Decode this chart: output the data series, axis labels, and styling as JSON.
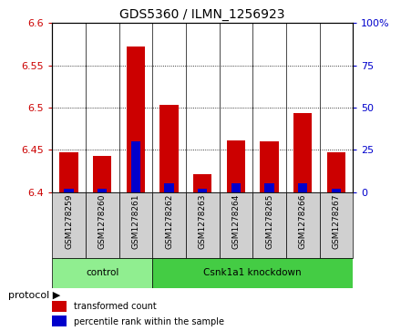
{
  "title": "GDS5360 / ILMN_1256923",
  "samples": [
    "GSM1278259",
    "GSM1278260",
    "GSM1278261",
    "GSM1278262",
    "GSM1278263",
    "GSM1278264",
    "GSM1278265",
    "GSM1278266",
    "GSM1278267"
  ],
  "red_values": [
    6.447,
    6.443,
    6.572,
    6.503,
    6.421,
    6.461,
    6.46,
    6.493,
    6.447
  ],
  "blue_values_pct": [
    2,
    2,
    30,
    5,
    2,
    5,
    5,
    5,
    2
  ],
  "ylim": [
    6.4,
    6.6
  ],
  "yticks": [
    6.4,
    6.45,
    6.5,
    6.55,
    6.6
  ],
  "right_yticks": [
    0,
    25,
    50,
    75,
    100
  ],
  "right_ylim": [
    0,
    100
  ],
  "bar_width": 0.55,
  "blue_bar_width": 0.28,
  "red_color": "#cc0000",
  "blue_color": "#0000cc",
  "grid_color": "#000000",
  "control_color": "#90ee90",
  "knockdown_color": "#44cc44",
  "control_samples": 3,
  "knockdown_samples": 6,
  "control_label": "control",
  "knockdown_label": "Csnk1a1 knockdown",
  "protocol_label": "protocol",
  "legend1": "transformed count",
  "legend2": "percentile rank within the sample",
  "tick_color_left": "#cc0000",
  "tick_color_right": "#0000cc",
  "base_value": 6.4,
  "label_gray": "#d0d0d0"
}
